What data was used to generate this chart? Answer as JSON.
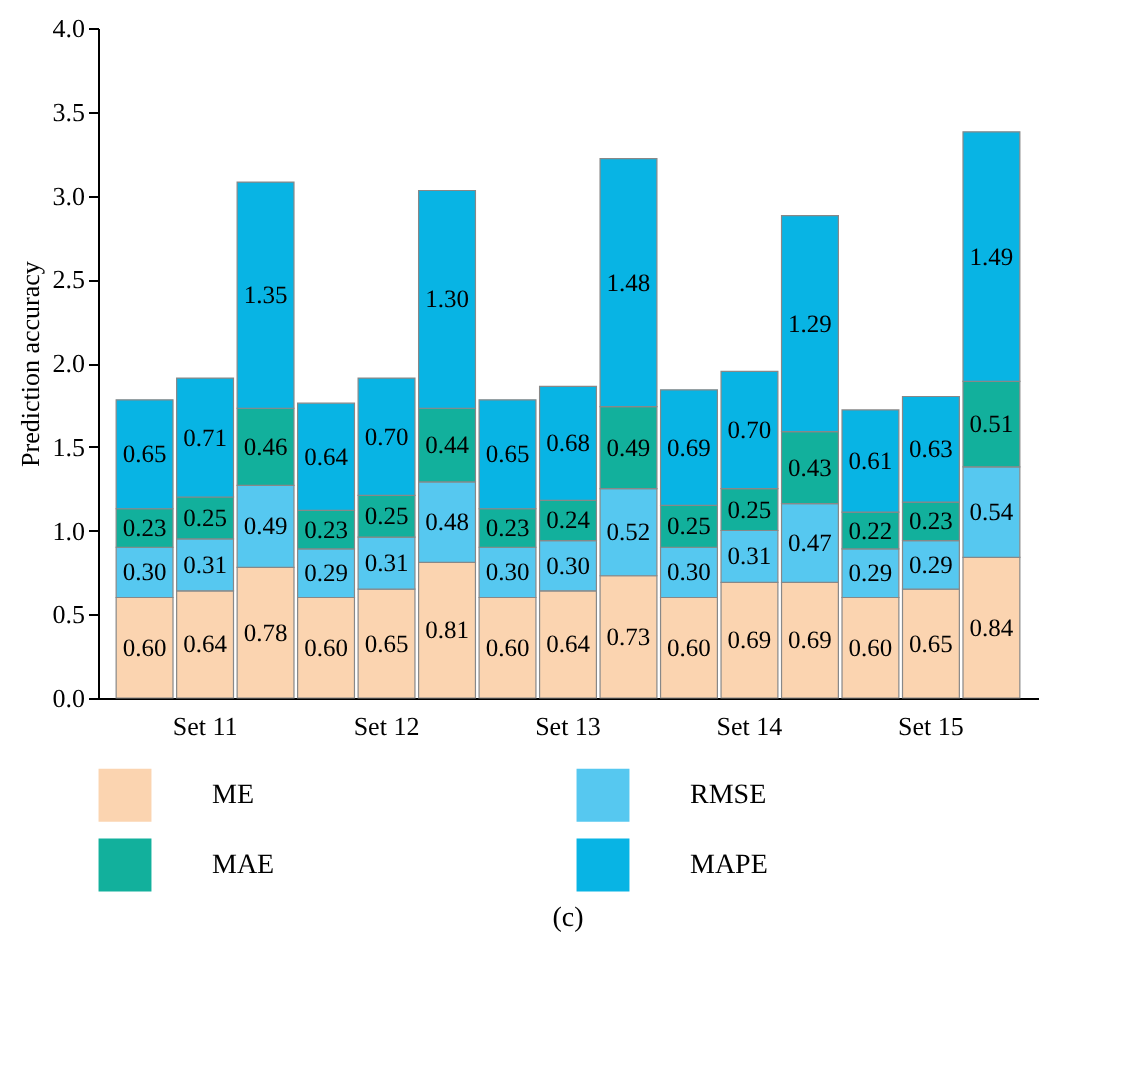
{
  "chart_data": {
    "type": "bar",
    "stacked": true,
    "ylabel": "Prediction accuracy",
    "categories": [
      null,
      "Set 11",
      null,
      null,
      "Set 12",
      null,
      null,
      "Set 13",
      null,
      null,
      "Set 14",
      null,
      null,
      "Set 15",
      null
    ],
    "series": [
      {
        "name": "ME",
        "color": "#fbd4b0",
        "values": [
          0.6,
          0.64,
          0.78,
          0.6,
          0.65,
          0.81,
          0.6,
          0.64,
          0.73,
          0.6,
          0.69,
          0.69,
          0.6,
          0.65,
          0.84
        ],
        "value_labels": [
          "0.60",
          "0.64",
          "0.78",
          "0.60",
          "0.65",
          "0.81",
          "0.60",
          "0.64",
          "0.73",
          "0.60",
          "0.69",
          "0.69",
          "0.60",
          "0.65",
          "0.84"
        ]
      },
      {
        "name": "RMSE",
        "color": "#56c8f0",
        "values": [
          0.3,
          0.31,
          0.49,
          0.29,
          0.31,
          0.48,
          0.3,
          0.3,
          0.52,
          0.3,
          0.31,
          0.47,
          0.29,
          0.29,
          0.54
        ],
        "value_labels": [
          "0.30",
          "0.31",
          "0.49",
          "0.29",
          "0.31",
          "0.48",
          "0.30",
          "0.30",
          "0.52",
          "0.30",
          "0.31",
          "0.47",
          "0.29",
          "0.29",
          "0.54"
        ]
      },
      {
        "name": "MAE",
        "color": "#12b09c",
        "values": [
          0.23,
          0.25,
          0.46,
          0.23,
          0.25,
          0.44,
          0.23,
          0.24,
          0.49,
          0.25,
          0.25,
          0.43,
          0.22,
          0.23,
          0.51
        ],
        "value_labels": [
          "0.23",
          "0.25",
          "0.46",
          "0.23",
          "0.25",
          "0.44",
          "0.23",
          "0.24",
          "0.49",
          "0.25",
          "0.25",
          "0.43",
          "0.22",
          "0.23",
          "0.51"
        ]
      },
      {
        "name": "MAPE",
        "color": "#08b4e4",
        "values": [
          0.65,
          0.71,
          1.35,
          0.64,
          0.7,
          1.3,
          0.65,
          0.68,
          1.48,
          0.69,
          0.7,
          1.29,
          0.61,
          0.63,
          1.49
        ],
        "value_labels": [
          "0.65",
          "0.71",
          "1.35",
          "0.64",
          "0.70",
          "1.30",
          "0.65",
          "0.68",
          "1.48",
          "0.69",
          "0.70",
          "1.29",
          "0.61",
          "0.63",
          "1.49"
        ]
      }
    ],
    "ylim": [
      0,
      4
    ],
    "yticks": [
      {
        "value": 0,
        "label": "0.0"
      },
      0.5,
      {
        "value": 1,
        "label": "1.0"
      },
      1.5,
      {
        "value": 2,
        "label": "2.0"
      },
      2.5,
      {
        "value": 3,
        "label": "3.0"
      },
      3.5,
      {
        "value": 4,
        "label": "4.0"
      }
    ],
    "legend": "bottom",
    "grid": false,
    "annotations": [
      "(c)"
    ]
  }
}
